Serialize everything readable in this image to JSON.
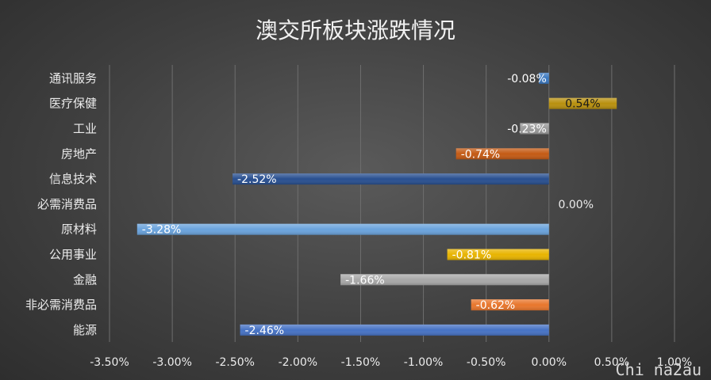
{
  "chart_data": {
    "type": "bar",
    "orientation": "horizontal",
    "title": "澳交所板块涨跌情况",
    "categories": [
      "通讯服务",
      "医疗保健",
      "工业",
      "房地产",
      "信息技术",
      "必需消费品",
      "原材料",
      "公用事业",
      "金融",
      "非必需消费品",
      "能源"
    ],
    "values": [
      -0.08,
      0.54,
      -0.23,
      -0.74,
      -2.52,
      0.0,
      -3.28,
      -0.81,
      -1.66,
      -0.62,
      -2.46
    ],
    "value_labels": [
      "-0.08%",
      "0.54%",
      "-0.23%",
      "-0.74%",
      "-2.52%",
      "0.00%",
      "-3.28%",
      "-0.81%",
      "-1.66%",
      "-0.62%",
      "-2.46%"
    ],
    "colors": [
      "#3a78c0",
      "#b8900e",
      "#9a9a9a",
      "#c45a14",
      "#284f90",
      "#6a6a6a",
      "#6aa3dc",
      "#e8b400",
      "#a8a8a8",
      "#e8762c",
      "#4672c4"
    ],
    "xlim": [
      -3.5,
      1.0
    ],
    "xticks": [
      -3.5,
      -3.0,
      -2.5,
      -2.0,
      -1.5,
      -1.0,
      -0.5,
      0.0,
      0.5,
      1.0
    ],
    "xtick_labels": [
      "-3.50%",
      "-3.00%",
      "-2.50%",
      "-2.00%",
      "-1.50%",
      "-1.00%",
      "-0.50%",
      "0.00%",
      "0.50%",
      "1.00%"
    ],
    "grid": true,
    "legend": "none"
  },
  "watermark": "Chi na2au"
}
